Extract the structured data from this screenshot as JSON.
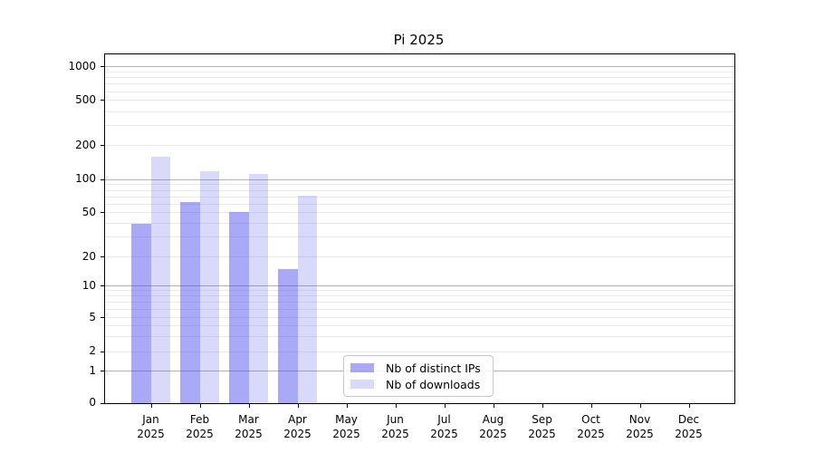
{
  "window": {
    "background": "#ffffff"
  },
  "chart_data": {
    "type": "bar",
    "title": "Pi 2025",
    "x_tick_months": [
      "Jan",
      "Feb",
      "Mar",
      "Apr",
      "May",
      "Jun",
      "Jul",
      "Aug",
      "Sep",
      "Oct",
      "Nov",
      "Dec"
    ],
    "x_tick_year": "2025",
    "series": [
      {
        "name": "Nb of distinct IPs",
        "color": "rgba(64,64,240,0.45)",
        "values": [
          40,
          62,
          51,
          15,
          null,
          null,
          null,
          null,
          null,
          null,
          null,
          null
        ]
      },
      {
        "name": "Nb of downloads",
        "color": "rgba(64,64,240,0.2)",
        "values": [
          160,
          118,
          112,
          72,
          null,
          null,
          null,
          null,
          null,
          null,
          null,
          null
        ]
      }
    ],
    "y_ticks": [
      0,
      1,
      2,
      5,
      10,
      20,
      50,
      100,
      200,
      500,
      1000
    ],
    "y_scale": "symlog",
    "ylim": [
      0,
      1300
    ],
    "grid": true,
    "grid_major_color": "#b3b3b3",
    "grid_minor_color": "#eaeaea",
    "legend_position": "inside-bottom-center",
    "legend_items": [
      "Nb of distinct IPs",
      "Nb of downloads"
    ]
  }
}
